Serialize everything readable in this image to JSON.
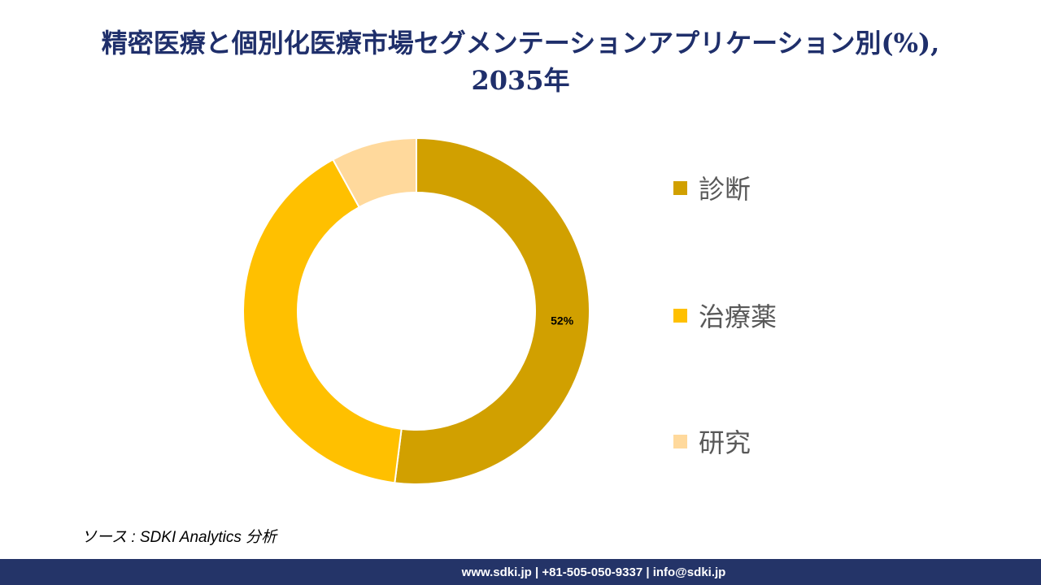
{
  "chart_data": {
    "type": "pie",
    "title_line1": "精密医療と個別化医療市場セグメンテーションアプリケーション別(%),",
    "title_line2": "2035年",
    "categories": [
      "診断",
      "治療薬",
      "研究"
    ],
    "values": [
      52,
      40,
      8
    ],
    "colors": [
      "#d1a000",
      "#ffc000",
      "#ffd99c"
    ],
    "data_labels": [
      "52%",
      null,
      null
    ],
    "legend_position": "right"
  },
  "source_text": "ソース : SDKI Analytics  分析",
  "footer_text": "www.sdki.jp | +81-505-050-9337 | info@sdki.jp"
}
